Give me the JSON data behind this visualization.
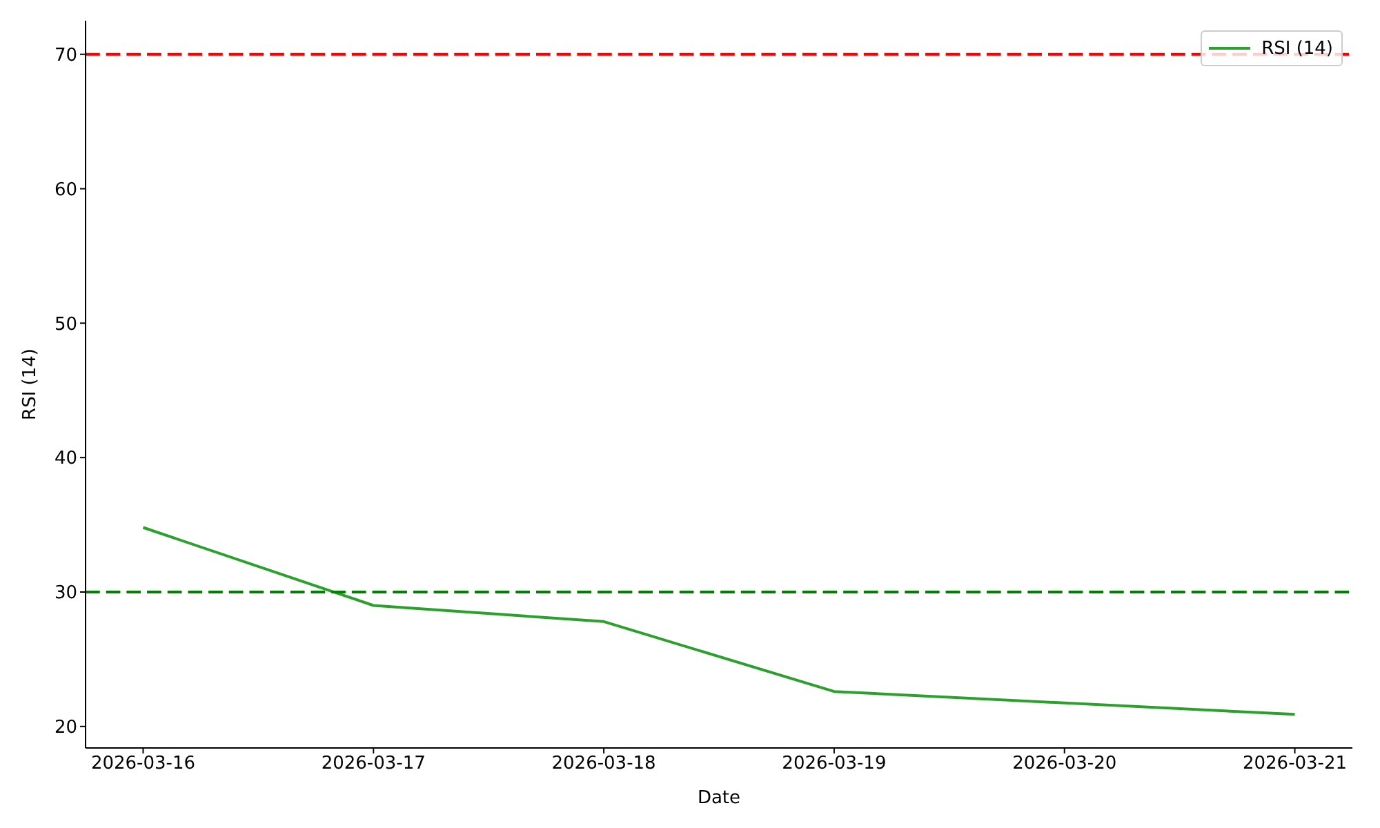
{
  "chart_data": {
    "type": "line",
    "xlabel": "Date",
    "ylabel": "RSI (14)",
    "x": [
      "2026-03-16",
      "2026-03-17",
      "2026-03-18",
      "2026-03-19",
      "2026-03-21"
    ],
    "series": [
      {
        "name": "RSI (14)",
        "color": "#2ca02c",
        "values": [
          34.8,
          29.0,
          27.8,
          22.6,
          20.9
        ]
      }
    ],
    "xlim": [
      "2026-03-15T18:00",
      "2026-03-21T06:00"
    ],
    "xticks": [
      "2026-03-16",
      "2026-03-17",
      "2026-03-18",
      "2026-03-19",
      "2026-03-20",
      "2026-03-21"
    ],
    "ylim": [
      18.4,
      72.5
    ],
    "yticks": [
      20,
      30,
      40,
      50,
      60,
      70
    ],
    "ref_lines": [
      {
        "axis": "y",
        "value": 70,
        "color": "#ff0000",
        "line_style": "dashed"
      },
      {
        "axis": "y",
        "value": 30,
        "color": "#008000",
        "line_style": "dashed"
      }
    ],
    "legend": "top right",
    "grid": false,
    "marker": "none",
    "line_style": "solid"
  }
}
